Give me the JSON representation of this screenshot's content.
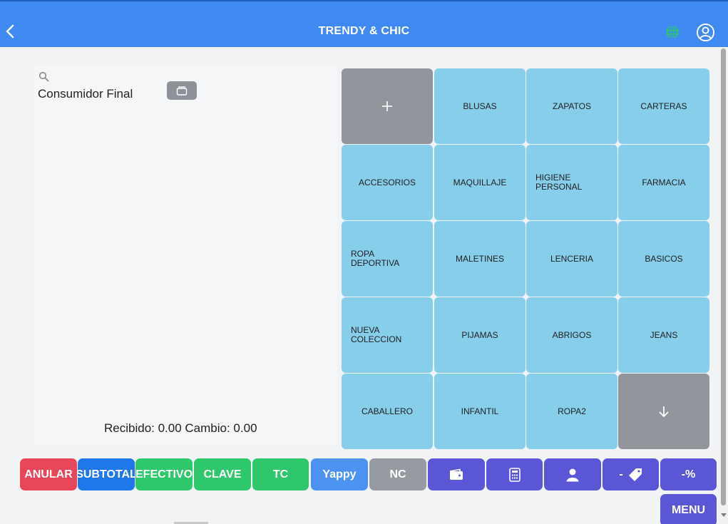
{
  "header": {
    "title": "TRENDY & CHIC",
    "back_icon": "chevron-left-icon",
    "globe_icon": "globe-icon",
    "user_icon": "user-circle-icon",
    "accent": "#3f89f3"
  },
  "customer": {
    "search_icon": "search-icon",
    "name": "Consumidor Final",
    "drawer_icon": "cash-drawer-icon"
  },
  "totals": {
    "text": "Recibido: 0.00 Cambio: 0.00"
  },
  "categories": {
    "add_icon": "plus-icon",
    "more_icon": "arrow-down-icon",
    "items": [
      "BLUSAS",
      "ZAPATOS",
      "CARTERAS",
      "ACCESORIOS",
      "MAQUILLAJE",
      "HIGIENE PERSONAL",
      "FARMACIA",
      "ROPA DEPORTIVA",
      "MALETINES",
      "LENCERIA",
      "BASICOS",
      "NUEVA COLECCION",
      "PIJAMAS",
      "ABRIGOS",
      "JEANS",
      "CABALLERO",
      "INFANTIL",
      "ROPA2"
    ],
    "tile_color": "#87ceeb"
  },
  "actions": {
    "anular": "ANULAR",
    "subtotal": "SUBTOTAL",
    "efectivo": "EFECTIVO",
    "clave": "CLAVE",
    "tc": "TC",
    "yappy": "Yappy",
    "nc": "NC",
    "wallet_icon": "wallet-icon",
    "calculator_icon": "calculator-icon",
    "person_icon": "person-icon",
    "discount_tag_label": "-",
    "discount_tag_icon": "tag-icon",
    "percent_discount": "-%",
    "menu": "MENU"
  }
}
